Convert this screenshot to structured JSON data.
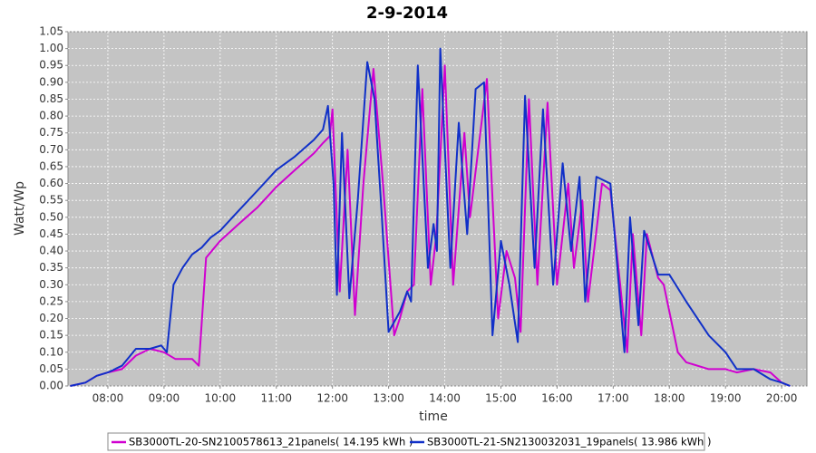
{
  "chart_data": {
    "type": "line",
    "title": "2-9-2014",
    "x_label": "time",
    "y_label": "Watt/Wp",
    "grid": true,
    "xlim": [
      7.29,
      20.45
    ],
    "ylim": [
      0,
      1.05
    ],
    "xticks": [
      {
        "value": 8,
        "label": "08:00"
      },
      {
        "value": 9,
        "label": "09:00"
      },
      {
        "value": 10,
        "label": "10:00"
      },
      {
        "value": 11,
        "label": "11:00"
      },
      {
        "value": 12,
        "label": "12:00"
      },
      {
        "value": 13,
        "label": "13:00"
      },
      {
        "value": 14,
        "label": "14:00"
      },
      {
        "value": 15,
        "label": "15:00"
      },
      {
        "value": 16,
        "label": "16:00"
      },
      {
        "value": 17,
        "label": "17:00"
      },
      {
        "value": 18,
        "label": "18:00"
      },
      {
        "value": 19,
        "label": "19:00"
      },
      {
        "value": 20,
        "label": "20:00"
      }
    ],
    "yticks": [
      {
        "value": 0,
        "label": "0.00"
      },
      {
        "value": 0.05,
        "label": "0.05"
      },
      {
        "value": 0.1,
        "label": "0.10"
      },
      {
        "value": 0.15,
        "label": "0.15"
      },
      {
        "value": 0.2,
        "label": "0.20"
      },
      {
        "value": 0.25,
        "label": "0.25"
      },
      {
        "value": 0.3,
        "label": "0.30"
      },
      {
        "value": 0.35,
        "label": "0.35"
      },
      {
        "value": 0.4,
        "label": "0.40"
      },
      {
        "value": 0.45,
        "label": "0.45"
      },
      {
        "value": 0.5,
        "label": "0.50"
      },
      {
        "value": 0.55,
        "label": "0.55"
      },
      {
        "value": 0.6,
        "label": "0.60"
      },
      {
        "value": 0.65,
        "label": "0.65"
      },
      {
        "value": 0.7,
        "label": "0.70"
      },
      {
        "value": 0.75,
        "label": "0.75"
      },
      {
        "value": 0.8,
        "label": "0.80"
      },
      {
        "value": 0.85,
        "label": "0.85"
      },
      {
        "value": 0.9,
        "label": "0.90"
      },
      {
        "value": 0.95,
        "label": "0.95"
      },
      {
        "value": 1,
        "label": "1.00"
      },
      {
        "value": 1.05,
        "label": "1.05"
      }
    ],
    "series": [
      {
        "name": "SB3000TL-20-SN2100578613_21panels( 14.195 kWh )",
        "color": "#d000d0",
        "x": [
          7.33,
          7.6,
          7.8,
          8.0,
          8.25,
          8.5,
          8.75,
          9.0,
          9.2,
          9.5,
          9.62,
          9.75,
          9.9,
          10.0,
          10.33,
          10.67,
          11.0,
          11.33,
          11.67,
          11.83,
          11.95,
          12.0,
          12.13,
          12.27,
          12.4,
          12.55,
          12.73,
          12.9,
          13.1,
          13.2,
          13.33,
          13.45,
          13.6,
          13.75,
          13.85,
          14.0,
          14.15,
          14.35,
          14.45,
          14.75,
          14.95,
          15.1,
          15.25,
          15.35,
          15.5,
          15.65,
          15.83,
          16.0,
          16.2,
          16.3,
          16.45,
          16.55,
          16.8,
          16.95,
          17.25,
          17.35,
          17.5,
          17.6,
          17.8,
          17.9,
          18.15,
          18.3,
          18.7,
          19.0,
          19.2,
          19.5,
          19.8,
          20.0,
          20.15
        ],
        "values": [
          0,
          0.01,
          0.03,
          0.04,
          0.05,
          0.09,
          0.11,
          0.1,
          0.08,
          0.08,
          0.06,
          0.38,
          0.41,
          0.43,
          0.48,
          0.53,
          0.59,
          0.64,
          0.69,
          0.72,
          0.74,
          0.82,
          0.28,
          0.7,
          0.21,
          0.6,
          0.94,
          0.6,
          0.15,
          0.2,
          0.28,
          0.3,
          0.88,
          0.3,
          0.45,
          0.95,
          0.3,
          0.75,
          0.5,
          0.91,
          0.2,
          0.4,
          0.32,
          0.16,
          0.85,
          0.3,
          0.84,
          0.3,
          0.6,
          0.35,
          0.55,
          0.25,
          0.6,
          0.58,
          0.1,
          0.45,
          0.15,
          0.45,
          0.32,
          0.3,
          0.1,
          0.07,
          0.05,
          0.05,
          0.04,
          0.05,
          0.04,
          0.01,
          0
        ]
      },
      {
        "name": "SB3000TL-21-SN2130032031_19panels( 13.986 kWh )",
        "color": "#1030c8",
        "x": [
          7.33,
          7.6,
          7.8,
          8.0,
          8.25,
          8.5,
          8.75,
          8.95,
          9.05,
          9.17,
          9.33,
          9.5,
          9.67,
          9.83,
          10.0,
          10.33,
          10.67,
          11.0,
          11.33,
          11.67,
          11.83,
          11.92,
          12.02,
          12.08,
          12.17,
          12.3,
          12.45,
          12.62,
          12.75,
          12.88,
          13.0,
          13.2,
          13.33,
          13.4,
          13.52,
          13.7,
          13.8,
          13.86,
          13.92,
          14.1,
          14.25,
          14.4,
          14.55,
          14.7,
          14.85,
          15.0,
          15.15,
          15.3,
          15.43,
          15.6,
          15.75,
          15.93,
          16.1,
          16.25,
          16.4,
          16.5,
          16.7,
          16.95,
          17.2,
          17.3,
          17.45,
          17.55,
          17.8,
          18.0,
          18.3,
          18.7,
          19.0,
          19.2,
          19.5,
          19.8,
          20.0,
          20.15
        ],
        "values": [
          0,
          0.01,
          0.03,
          0.04,
          0.06,
          0.11,
          0.11,
          0.12,
          0.1,
          0.3,
          0.35,
          0.39,
          0.41,
          0.44,
          0.46,
          0.52,
          0.58,
          0.64,
          0.68,
          0.73,
          0.76,
          0.83,
          0.6,
          0.27,
          0.75,
          0.26,
          0.55,
          0.96,
          0.85,
          0.5,
          0.16,
          0.22,
          0.28,
          0.25,
          0.95,
          0.35,
          0.48,
          0.4,
          1.0,
          0.35,
          0.78,
          0.45,
          0.88,
          0.9,
          0.15,
          0.43,
          0.3,
          0.13,
          0.86,
          0.35,
          0.82,
          0.3,
          0.66,
          0.4,
          0.62,
          0.25,
          0.62,
          0.6,
          0.1,
          0.5,
          0.18,
          0.46,
          0.33,
          0.33,
          0.25,
          0.15,
          0.1,
          0.05,
          0.05,
          0.02,
          0.01,
          0
        ]
      }
    ]
  }
}
